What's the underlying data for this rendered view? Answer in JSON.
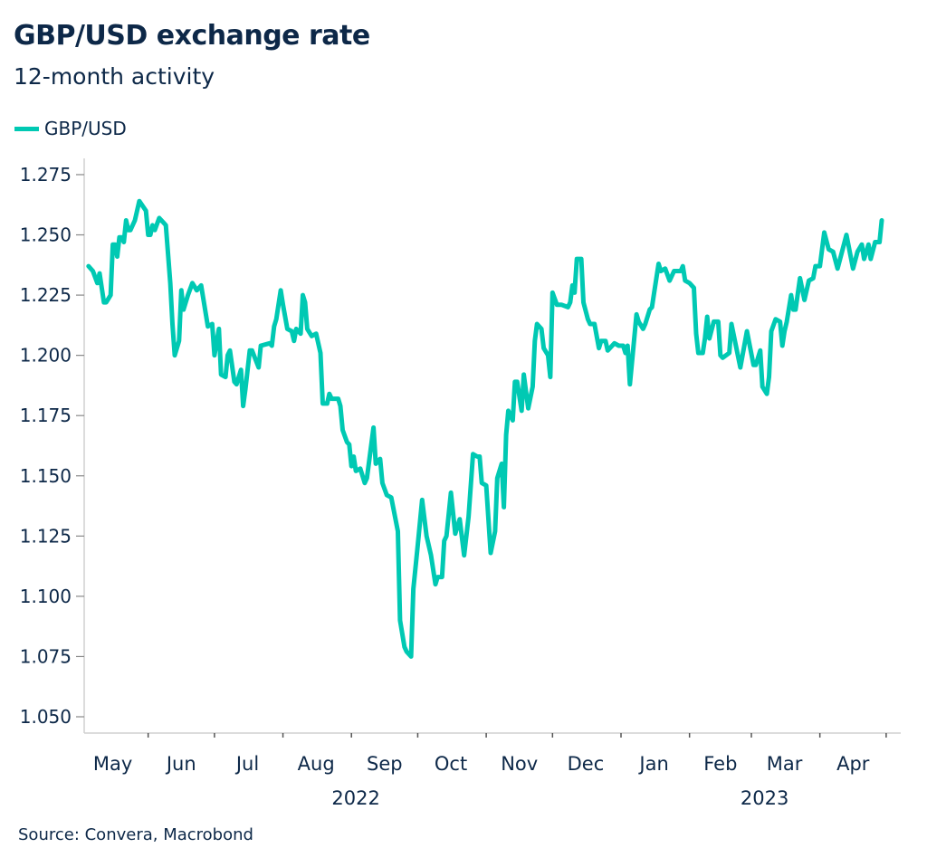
{
  "title": "GBP/USD exchange rate",
  "subtitle": "12-month activity",
  "source": "Source: Convera, Macrobond",
  "colors": {
    "line": "#00c9b3",
    "text": "#0d2848",
    "axis": "#d0d0d0"
  },
  "chart_data": {
    "type": "line",
    "title": "GBP/USD exchange rate",
    "subtitle": "12-month activity",
    "legend": {
      "placement": "top-left",
      "entries": [
        "GBP/USD"
      ]
    },
    "grid": false,
    "ylim": [
      1.05,
      1.275
    ],
    "xlim": [
      "2022-05-01",
      "2023-04-30"
    ],
    "yticks": [
      "1.050",
      "1.075",
      "1.100",
      "1.125",
      "1.150",
      "1.175",
      "1.200",
      "1.225",
      "1.250",
      "1.275"
    ],
    "xticks": [
      "May",
      "Jun",
      "Jul",
      "Aug",
      "Sep",
      "Oct",
      "Nov",
      "Dec",
      "Jan",
      "Feb",
      "Mar",
      "Apr"
    ],
    "year_labels": [
      "2022",
      "2023"
    ],
    "series": [
      {
        "name": "GBP/USD",
        "x": [
          "2022-05-05",
          "2022-05-07",
          "2022-05-09",
          "2022-05-10",
          "2022-05-12",
          "2022-05-13",
          "2022-05-15",
          "2022-05-16",
          "2022-05-17",
          "2022-05-18",
          "2022-05-19",
          "2022-05-20",
          "2022-05-21",
          "2022-05-22",
          "2022-05-23",
          "2022-05-24",
          "2022-05-26",
          "2022-05-28",
          "2022-05-31",
          "2022-06-01",
          "2022-06-02",
          "2022-06-03",
          "2022-06-04",
          "2022-06-06",
          "2022-06-08",
          "2022-06-09",
          "2022-06-11",
          "2022-06-12",
          "2022-06-13",
          "2022-06-15",
          "2022-06-16",
          "2022-06-17",
          "2022-06-19",
          "2022-06-21",
          "2022-06-23",
          "2022-06-25",
          "2022-06-28",
          "2022-06-30",
          "2022-07-01",
          "2022-07-03",
          "2022-07-04",
          "2022-07-06",
          "2022-07-07",
          "2022-07-08",
          "2022-07-10",
          "2022-07-11",
          "2022-07-13",
          "2022-07-14",
          "2022-07-15",
          "2022-07-17",
          "2022-07-18",
          "2022-07-21",
          "2022-07-22",
          "2022-07-26",
          "2022-07-27",
          "2022-07-28",
          "2022-07-29",
          "2022-07-31",
          "2022-08-01",
          "2022-08-03",
          "2022-08-05",
          "2022-08-06",
          "2022-08-07",
          "2022-08-09",
          "2022-08-10",
          "2022-08-11",
          "2022-08-12",
          "2022-08-14",
          "2022-08-16",
          "2022-08-18",
          "2022-08-19",
          "2022-08-21",
          "2022-08-22",
          "2022-08-23",
          "2022-08-26",
          "2022-08-27",
          "2022-08-28",
          "2022-08-30",
          "2022-08-31",
          "2022-09-01",
          "2022-09-02",
          "2022-09-03",
          "2022-09-05",
          "2022-09-07",
          "2022-09-08",
          "2022-09-11",
          "2022-09-12",
          "2022-09-14",
          "2022-09-15",
          "2022-09-17",
          "2022-09-19",
          "2022-09-22",
          "2022-09-23",
          "2022-09-25",
          "2022-09-26",
          "2022-09-28",
          "2022-09-29",
          "2022-10-01",
          "2022-10-03",
          "2022-10-05",
          "2022-10-07",
          "2022-10-09",
          "2022-10-10",
          "2022-10-12",
          "2022-10-13",
          "2022-10-14",
          "2022-10-16",
          "2022-10-18",
          "2022-10-20",
          "2022-10-22",
          "2022-10-24",
          "2022-10-26",
          "2022-10-28",
          "2022-10-29",
          "2022-10-30",
          "2022-11-01",
          "2022-11-03",
          "2022-11-05",
          "2022-11-06",
          "2022-11-08",
          "2022-11-09",
          "2022-11-10",
          "2022-11-11",
          "2022-11-13",
          "2022-11-14",
          "2022-11-15",
          "2022-11-17",
          "2022-11-18",
          "2022-11-20",
          "2022-11-22",
          "2022-11-23",
          "2022-11-24",
          "2022-11-26",
          "2022-11-27",
          "2022-11-29",
          "2022-11-30",
          "2022-12-01",
          "2022-12-03",
          "2022-12-05",
          "2022-12-08",
          "2022-12-09",
          "2022-12-10",
          "2022-12-11",
          "2022-12-12",
          "2022-12-14",
          "2022-12-15",
          "2022-12-17",
          "2022-12-18",
          "2022-12-20",
          "2022-12-22",
          "2022-12-23",
          "2022-12-25",
          "2022-12-26",
          "2022-12-29",
          "2022-12-31",
          "2023-01-02",
          "2023-01-03",
          "2023-01-04",
          "2023-01-05",
          "2023-01-07",
          "2023-01-08",
          "2023-01-09",
          "2023-01-11",
          "2023-01-12",
          "2023-01-14",
          "2023-01-15",
          "2023-01-16",
          "2023-01-18",
          "2023-01-19",
          "2023-01-21",
          "2023-01-23",
          "2023-01-25",
          "2023-01-28",
          "2023-01-29",
          "2023-01-30",
          "2023-02-01",
          "2023-02-03",
          "2023-02-04",
          "2023-02-05",
          "2023-02-07",
          "2023-02-08",
          "2023-02-09",
          "2023-02-10",
          "2023-02-12",
          "2023-02-14",
          "2023-02-15",
          "2023-02-16",
          "2023-02-19",
          "2023-02-20",
          "2023-02-24",
          "2023-02-27",
          "2023-03-02",
          "2023-03-03",
          "2023-03-05",
          "2023-03-06",
          "2023-03-08",
          "2023-03-09",
          "2023-03-10",
          "2023-03-12",
          "2023-03-14",
          "2023-03-15",
          "2023-03-16",
          "2023-03-17",
          "2023-03-19",
          "2023-03-20",
          "2023-03-21",
          "2023-03-23",
          "2023-03-25",
          "2023-03-27",
          "2023-03-29",
          "2023-03-30",
          "2023-04-01",
          "2023-04-03",
          "2023-04-05",
          "2023-04-07",
          "2023-04-09",
          "2023-04-11",
          "2023-04-13",
          "2023-04-16",
          "2023-04-18",
          "2023-04-20",
          "2023-04-21",
          "2023-04-23",
          "2023-04-24",
          "2023-04-26",
          "2023-04-28",
          "2023-04-29"
        ],
        "values": [
          1.237,
          1.235,
          1.23,
          1.234,
          1.222,
          1.222,
          1.225,
          1.246,
          1.246,
          1.241,
          1.249,
          1.249,
          1.247,
          1.256,
          1.252,
          1.252,
          1.256,
          1.264,
          1.26,
          1.25,
          1.25,
          1.254,
          1.252,
          1.257,
          1.255,
          1.254,
          1.23,
          1.213,
          1.2,
          1.206,
          1.227,
          1.219,
          1.225,
          1.23,
          1.227,
          1.229,
          1.212,
          1.213,
          1.2,
          1.211,
          1.192,
          1.191,
          1.2,
          1.202,
          1.189,
          1.188,
          1.194,
          1.179,
          1.186,
          1.202,
          1.202,
          1.195,
          1.204,
          1.205,
          1.204,
          1.212,
          1.215,
          1.227,
          1.221,
          1.211,
          1.21,
          1.206,
          1.211,
          1.209,
          1.225,
          1.222,
          1.211,
          1.208,
          1.209,
          1.201,
          1.18,
          1.18,
          1.184,
          1.182,
          1.182,
          1.179,
          1.169,
          1.164,
          1.163,
          1.154,
          1.158,
          1.152,
          1.153,
          1.147,
          1.149,
          1.17,
          1.155,
          1.157,
          1.147,
          1.142,
          1.141,
          1.127,
          1.09,
          1.079,
          1.077,
          1.075,
          1.103,
          1.121,
          1.14,
          1.125,
          1.117,
          1.105,
          1.108,
          1.108,
          1.123,
          1.125,
          1.143,
          1.126,
          1.132,
          1.117,
          1.133,
          1.159,
          1.158,
          1.158,
          1.147,
          1.146,
          1.118,
          1.127,
          1.149,
          1.155,
          1.137,
          1.167,
          1.177,
          1.173,
          1.189,
          1.189,
          1.177,
          1.192,
          1.178,
          1.187,
          1.206,
          1.213,
          1.211,
          1.203,
          1.2,
          1.191,
          1.226,
          1.221,
          1.221,
          1.22,
          1.222,
          1.229,
          1.226,
          1.24,
          1.24,
          1.222,
          1.215,
          1.213,
          1.213,
          1.203,
          1.206,
          1.206,
          1.202,
          1.205,
          1.204,
          1.204,
          1.201,
          1.204,
          1.188,
          1.207,
          1.217,
          1.214,
          1.211,
          1.213,
          1.219,
          1.22,
          1.226,
          1.238,
          1.235,
          1.236,
          1.231,
          1.235,
          1.235,
          1.237,
          1.231,
          1.23,
          1.228,
          1.209,
          1.201,
          1.201,
          1.207,
          1.216,
          1.207,
          1.214,
          1.214,
          1.2,
          1.199,
          1.201,
          1.213,
          1.195,
          1.21,
          1.196,
          1.196,
          1.202,
          1.187,
          1.184,
          1.191,
          1.21,
          1.215,
          1.214,
          1.204,
          1.21,
          1.214,
          1.225,
          1.219,
          1.219,
          1.232,
          1.223,
          1.231,
          1.232,
          1.237,
          1.237,
          1.251,
          1.244,
          1.243,
          1.236,
          1.243,
          1.25,
          1.236,
          1.243,
          1.246,
          1.24,
          1.246,
          1.24,
          1.247,
          1.247,
          1.256
        ]
      }
    ]
  }
}
